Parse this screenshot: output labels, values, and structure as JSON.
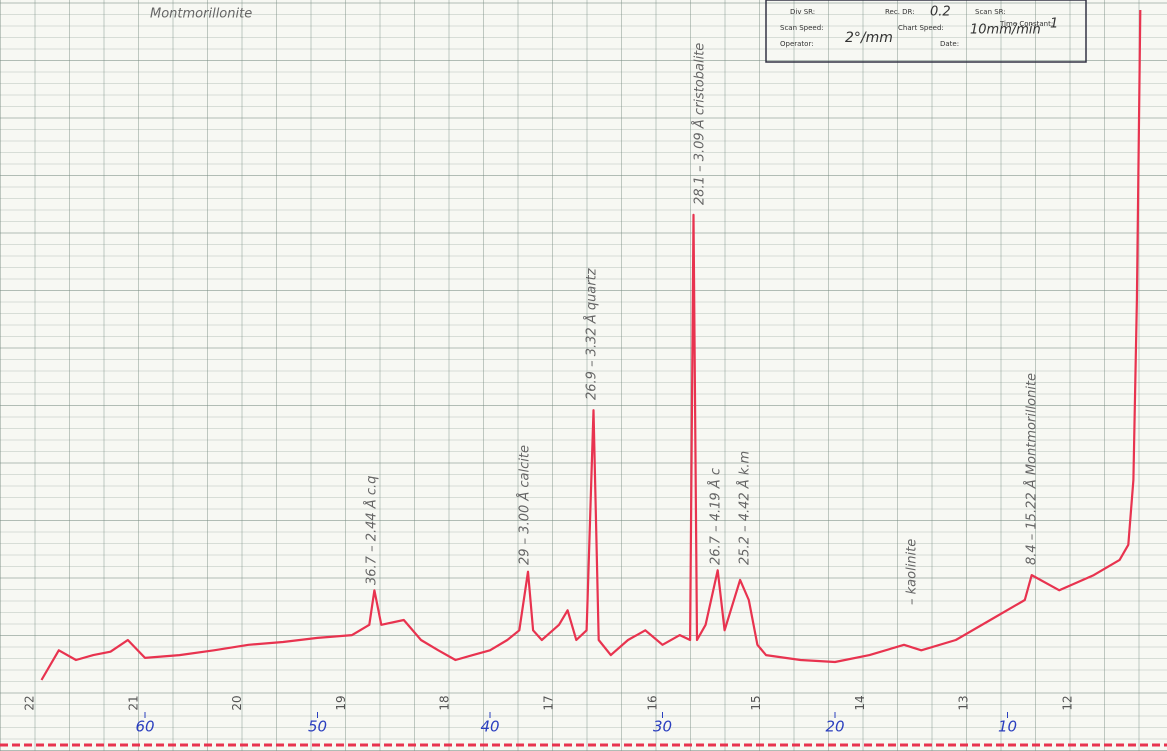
{
  "chart_data": {
    "type": "line",
    "header_note": "Montmorillonite",
    "info_box": {
      "div_sr": "Div SR:",
      "rec_dr": "Rec. DR:",
      "rec_dr_value": "0.2",
      "scan_sr": "Scan SR:",
      "scan_speed": "Scan Speed:",
      "scan_speed_value": "2°/mm",
      "chart_speed": "Chart Speed:",
      "chart_speed_value": "10mm/min",
      "time_constant": "Time Constant:",
      "time_constant_value": "1",
      "operator": "Operator:",
      "date": "Date:"
    },
    "paper_scale": [
      "22",
      "21",
      "20",
      "19",
      "18",
      "17",
      "16",
      "15",
      "14",
      "13",
      "12"
    ],
    "annotations": [
      "36.7 – 2.44 Å c.q",
      "29 – 3.00 Å calcite",
      "26.9 – 3.32 Å quartz",
      "28.1 – 3.09 Å cristobalite",
      "26.7 – 4.19 Å c",
      "25.2 – 4.42 Å k.m",
      "– kaolinite",
      "8.4 – 15.22 Å Montmorillonite"
    ],
    "x": [
      66,
      65,
      64,
      63,
      62,
      61,
      60,
      58,
      56,
      54,
      52,
      50,
      48,
      47,
      46.7,
      46.3,
      45,
      44,
      43,
      42,
      41,
      40,
      39,
      38.3,
      37.8,
      37.5,
      37,
      36,
      35.5,
      35,
      34.4,
      34.0,
      33.7,
      33,
      32,
      31,
      30,
      29,
      28.4,
      28.2,
      28.0,
      27.5,
      26.8,
      26.4,
      25.5,
      25,
      24.5,
      24,
      22,
      20,
      18,
      16,
      15,
      13,
      11,
      9,
      8.6,
      7,
      5,
      3.5,
      3,
      2.7,
      2.5,
      2.3
    ],
    "series": [
      {
        "color": "#e8334f",
        "values": [
          2.9,
          7.2,
          5.8,
          6.5,
          7.0,
          8.7,
          6.1,
          6.5,
          7.2,
          8.0,
          8.4,
          9.0,
          9.4,
          10.9,
          15.9,
          10.9,
          11.6,
          8.7,
          7.2,
          5.8,
          6.5,
          7.2,
          8.7,
          10.1,
          18.6,
          10.1,
          8.7,
          10.9,
          13.0,
          8.7,
          10.1,
          42.0,
          8.7,
          6.5,
          8.7,
          10.1,
          8.0,
          9.4,
          8.7,
          70.3,
          8.7,
          10.9,
          18.8,
          10.1,
          17.4,
          14.5,
          8.0,
          6.5,
          5.8,
          5.5,
          6.5,
          8.0,
          7.2,
          8.7,
          11.6,
          14.5,
          18.1,
          15.9,
          18.1,
          20.3,
          22.5,
          31.9,
          58.0,
          100
        ]
      }
    ],
    "xlim": [
      66,
      2
    ],
    "ylim": [
      0,
      100
    ],
    "xticks": [
      60,
      50,
      40,
      30,
      20,
      10
    ]
  }
}
